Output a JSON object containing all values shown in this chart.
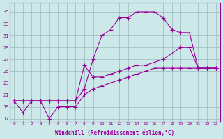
{
  "line1_x": [
    0,
    1,
    2,
    3,
    4,
    5,
    6,
    7,
    8,
    9,
    10,
    11,
    12,
    13,
    14,
    15,
    16,
    17,
    18,
    19,
    20,
    21,
    22,
    23
  ],
  "line1_y": [
    20,
    18,
    20,
    20,
    17,
    19,
    19,
    19,
    21,
    22,
    22.5,
    23,
    23.5,
    24,
    24.5,
    25,
    25.5,
    25.5,
    25.5,
    25.5,
    25.5,
    25.5,
    25.5,
    25.5
  ],
  "line2_x": [
    0,
    1,
    2,
    3,
    4,
    5,
    6,
    7,
    8,
    9,
    10,
    11,
    12,
    13,
    14,
    15,
    16,
    17,
    19,
    20,
    21,
    22,
    23
  ],
  "line2_y": [
    20,
    20,
    20,
    20,
    20,
    20,
    20,
    20,
    26,
    24,
    24,
    24.5,
    25,
    25.5,
    26,
    26,
    26.5,
    27,
    29,
    29,
    25.5,
    25.5,
    25.5
  ],
  "line3_x": [
    0,
    1,
    2,
    3,
    4,
    5,
    6,
    7,
    8,
    9,
    10,
    11,
    12,
    13,
    14,
    15,
    16,
    17,
    18,
    19,
    20,
    21,
    22,
    23
  ],
  "line3_y": [
    20,
    20,
    20,
    20,
    20,
    20,
    20,
    20,
    22,
    27,
    31,
    32,
    34,
    34,
    35,
    35,
    35,
    34,
    32,
    31.5,
    31.5,
    25.5,
    25.5,
    25.5
  ],
  "line_color": "#990099",
  "bg_color": "#cce8e8",
  "grid_color": "#99bbbb",
  "xlabel": "Windchill (Refroidissement éolien,°C)",
  "xlim": [
    -0.5,
    23.5
  ],
  "ylim": [
    16.5,
    36.5
  ],
  "yticks": [
    17,
    19,
    21,
    23,
    25,
    27,
    29,
    31,
    33,
    35
  ],
  "xticks": [
    0,
    1,
    2,
    3,
    4,
    5,
    6,
    7,
    8,
    9,
    10,
    11,
    12,
    13,
    14,
    15,
    16,
    17,
    18,
    19,
    20,
    21,
    22,
    23
  ]
}
